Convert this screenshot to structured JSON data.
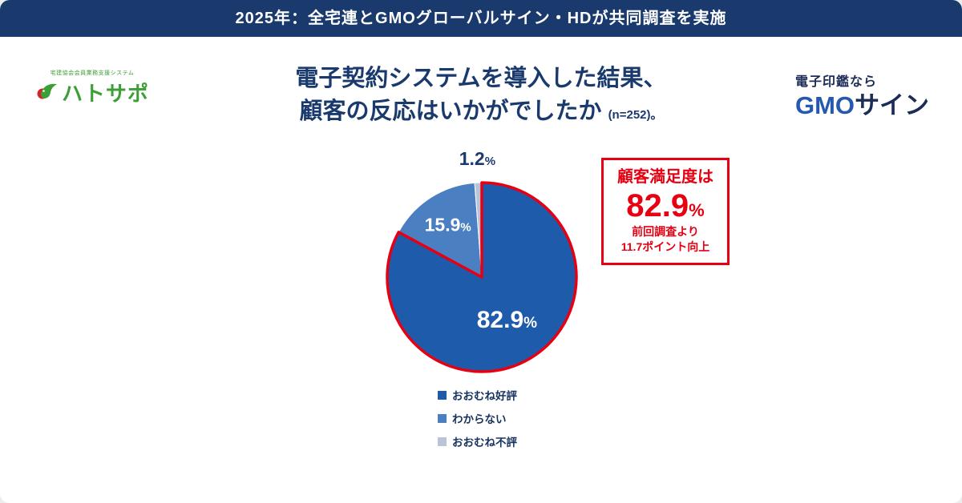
{
  "banner": {
    "text": "2025年：全宅連とGMOグローバルサイン・HDが共同調査を実施",
    "bg_color": "#1a3a6d"
  },
  "header": {
    "title_line1": "電子契約システムを導入した結果、",
    "title_line2": "顧客の反応はいかがでしたか",
    "sample_note": "(n=252)。"
  },
  "logos": {
    "hatosapo": {
      "tagline": "宅建協会会員業務支援システム",
      "name": "ハトサポ",
      "brand_color": "#3aa035"
    },
    "gmo": {
      "lead": "電子印鑑なら",
      "brand": "GMO",
      "brand_suffix": "サイン",
      "brand_color": "#2559b0",
      "suffix_color": "#1b2d56"
    }
  },
  "callout": {
    "heading": "顧客満足度は",
    "value": "82.9",
    "unit": "%",
    "sub1": "前回調査より",
    "sub2": "11.7ポイント向上",
    "accent_color": "#e60012"
  },
  "chart_data": {
    "type": "pie",
    "title": "電子契約システムを導入した結果、顧客の反応はいかがでしたか",
    "sample_size": "n=252",
    "unit": "%",
    "direction": "clockwise",
    "start_angle_deg": 0,
    "outline_color": "#e60012",
    "legend_position": "bottom",
    "slices": [
      {
        "label": "おおむね好評",
        "value": 82.9,
        "color": "#1e5baa",
        "label_color": "#ffffff",
        "label_position": "inside",
        "outlined": true
      },
      {
        "label": "わからない",
        "value": 15.9,
        "color": "#4a7fc1",
        "label_color": "#ffffff",
        "label_position": "inside",
        "outlined": false
      },
      {
        "label": "おおむね不評",
        "value": 1.2,
        "color": "#b8c4d9",
        "label_color": "#1a3a6d",
        "label_position": "outside",
        "outlined": false
      }
    ]
  }
}
